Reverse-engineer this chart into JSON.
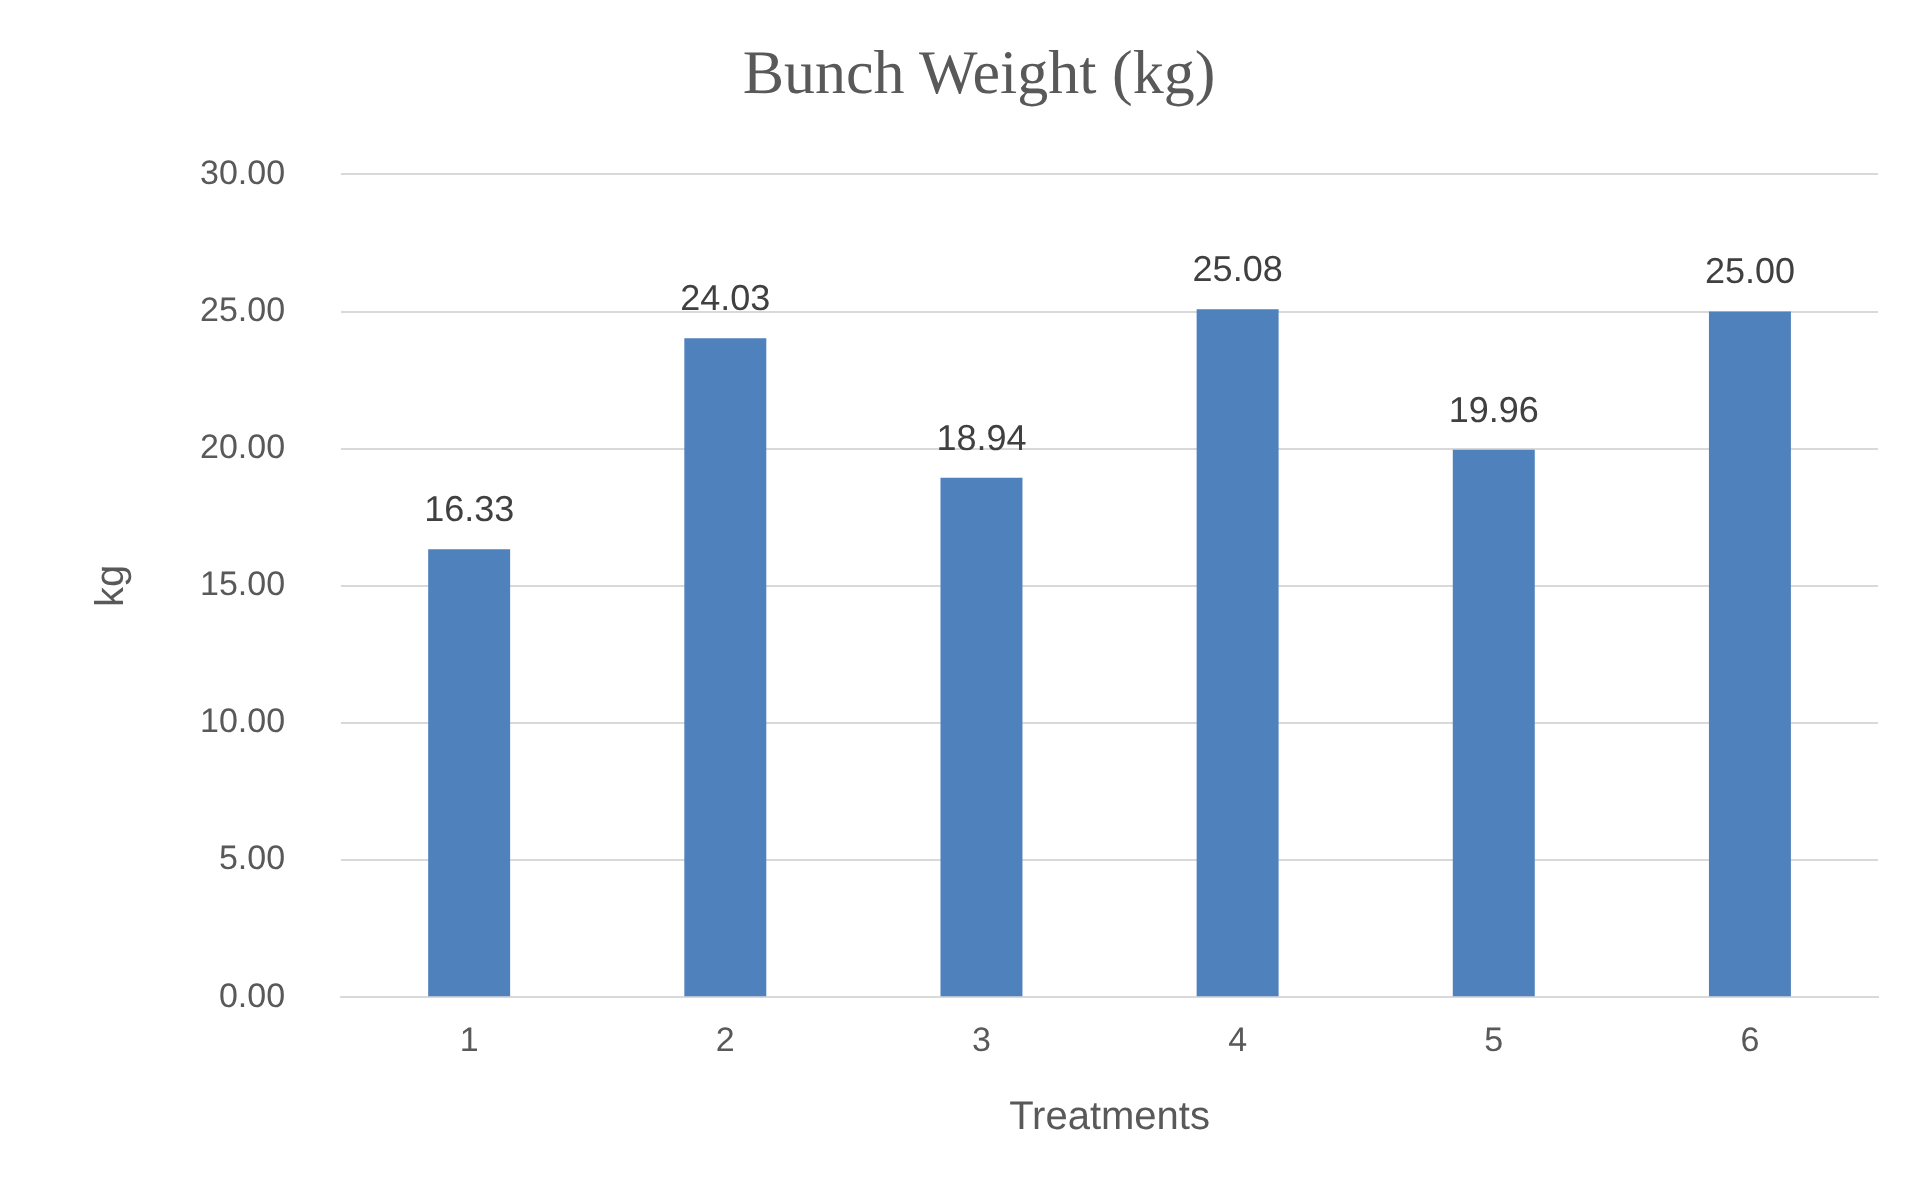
{
  "chart_data": {
    "type": "bar",
    "title": "Bunch Weight (kg)",
    "xlabel": "Treatments",
    "ylabel": "kg",
    "categories": [
      "1",
      "2",
      "3",
      "4",
      "5",
      "6"
    ],
    "values": [
      16.33,
      24.03,
      18.94,
      25.08,
      19.96,
      25.0
    ],
    "value_labels": [
      "16.33",
      "24.03",
      "18.94",
      "25.08",
      "19.96",
      "25.00"
    ],
    "color": "#4f81bd",
    "ylim": [
      0,
      30
    ],
    "yticks": [
      {
        "value": 0,
        "label": "0.00"
      },
      {
        "value": 5,
        "label": "5.00"
      },
      {
        "value": 10,
        "label": "10.00"
      },
      {
        "value": 15,
        "label": "15.00"
      },
      {
        "value": 20,
        "label": "20.00"
      },
      {
        "value": 25,
        "label": "25.00"
      },
      {
        "value": 30,
        "label": "30.00"
      }
    ],
    "grid": "y",
    "legend": false
  }
}
